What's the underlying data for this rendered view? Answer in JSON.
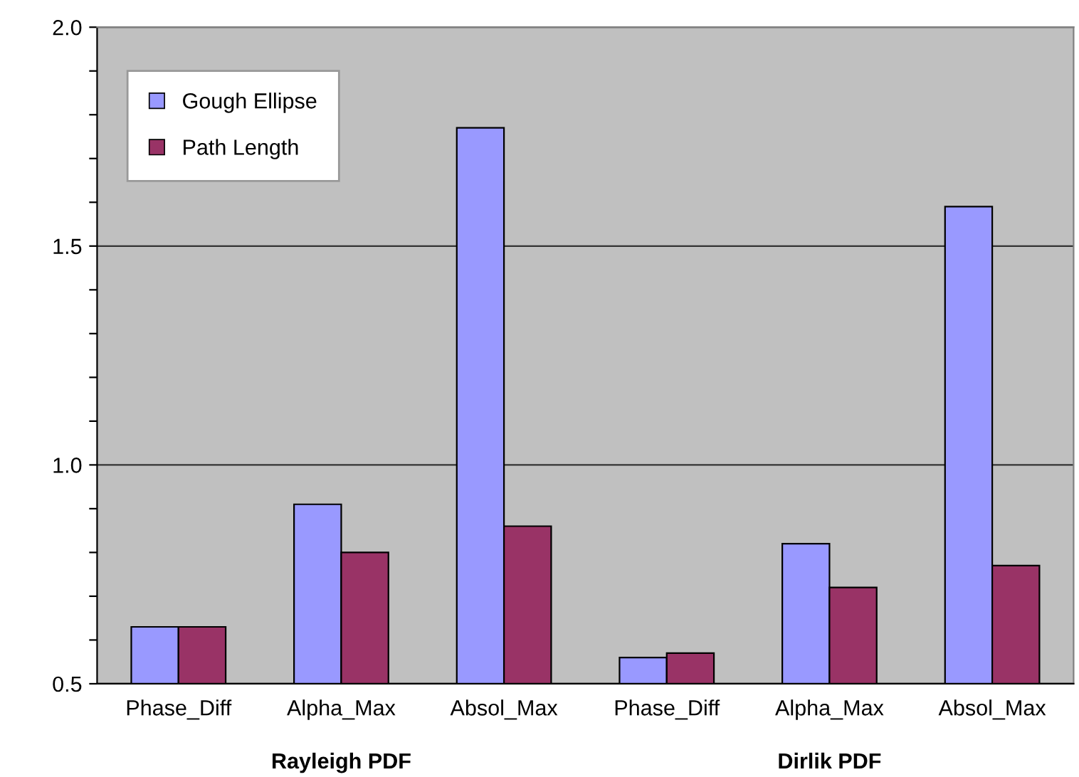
{
  "chart_data": {
    "type": "bar",
    "categories": [
      "Phase_Diff",
      "Alpha_Max",
      "Absol_Max",
      "Phase_Diff",
      "Alpha_Max",
      "Absol_Max"
    ],
    "series": [
      {
        "name": "Gough Ellipse",
        "color": "#9999ff",
        "values": [
          0.63,
          0.91,
          1.77,
          0.56,
          0.82,
          1.59
        ]
      },
      {
        "name": "Path Length",
        "color": "#993366",
        "values": [
          0.63,
          0.8,
          0.86,
          0.57,
          0.72,
          0.77
        ]
      }
    ],
    "annotations": [
      "Rayleigh PDF",
      "Dirlik PDF"
    ],
    "ylim": [
      0.5,
      2.0
    ],
    "yticks": [
      0.5,
      {
        "value": 0.6,
        "label": null
      },
      {
        "value": 0.7,
        "label": null
      },
      {
        "value": 0.8,
        "label": null
      },
      {
        "value": 0.9,
        "label": null
      },
      {
        "value": 1.0,
        "label": "1.0"
      },
      {
        "value": 1.1,
        "label": null
      },
      {
        "value": 1.2,
        "label": null
      },
      {
        "value": 1.3,
        "label": null
      },
      {
        "value": 1.4,
        "label": null
      },
      1.5,
      {
        "value": 1.6,
        "label": null
      },
      {
        "value": 1.7,
        "label": null
      },
      {
        "value": 1.8,
        "label": null
      },
      {
        "value": 1.9,
        "label": null
      },
      {
        "value": 2.0,
        "label": "2.0"
      }
    ],
    "grid": "y",
    "legend": "top left"
  }
}
